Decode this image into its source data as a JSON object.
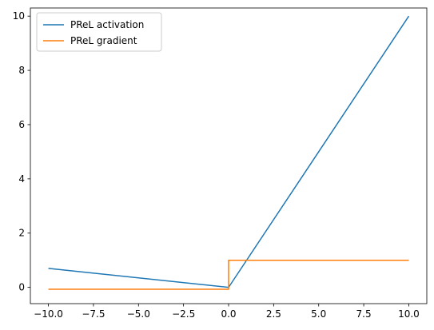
{
  "chart_data": {
    "type": "line",
    "title": "",
    "xlabel": "",
    "ylabel": "",
    "xlim": [
      -11.0,
      11.0
    ],
    "ylim": [
      -0.6,
      10.3
    ],
    "xticks": [
      -10.0,
      -7.5,
      -5.0,
      -2.5,
      0.0,
      2.5,
      5.0,
      7.5,
      10.0
    ],
    "xtick_labels": [
      "−10.0",
      "−7.5",
      "−5.0",
      "−2.5",
      "0.0",
      "2.5",
      "5.0",
      "7.5",
      "10.0"
    ],
    "yticks": [
      0,
      2,
      4,
      6,
      8,
      10
    ],
    "ytick_labels": [
      "0",
      "2",
      "4",
      "6",
      "8",
      "10"
    ],
    "grid": false,
    "legend": {
      "placement": "top-left"
    },
    "series": [
      {
        "name": "PReL activation",
        "color": "#1f77b4",
        "x": [
          -10.0,
          0.0,
          10.0
        ],
        "y": [
          0.7,
          0.0,
          10.0
        ]
      },
      {
        "name": "PReL gradient",
        "color": "#ff7f0e",
        "x": [
          -10.0,
          0.0,
          0.0,
          10.0
        ],
        "y": [
          -0.07,
          -0.07,
          1.0,
          1.0
        ]
      }
    ]
  }
}
